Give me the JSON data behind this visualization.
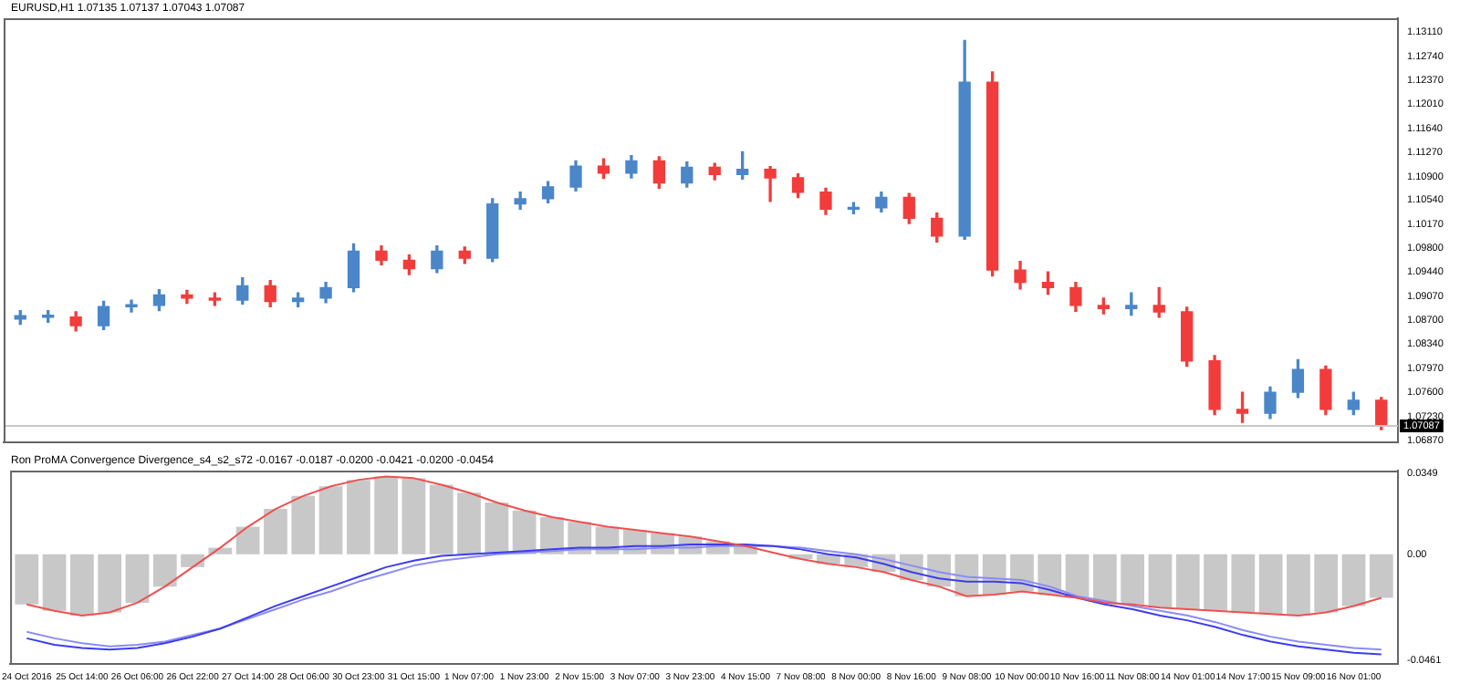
{
  "chart_data": [
    {
      "type": "candlestick",
      "title": "EURUSD,H1 1.07135 1.07137 1.07043 1.07087",
      "categories": [
        null,
        null,
        null,
        null,
        null,
        null,
        null,
        null,
        null,
        null,
        null,
        null,
        null,
        null,
        null,
        null,
        null,
        null,
        null,
        null,
        null,
        null,
        null,
        null,
        null,
        null,
        null,
        null,
        null,
        null,
        null,
        null,
        null,
        null,
        null,
        null,
        null,
        null,
        null,
        null,
        null,
        null,
        null,
        null,
        null,
        null,
        null,
        null,
        null,
        null
      ],
      "ohlc": [
        [
          1.0872,
          1.0885,
          1.0864,
          1.0877
        ],
        [
          1.0877,
          1.0885,
          1.0867,
          1.0875
        ],
        [
          1.0875,
          1.0883,
          1.0854,
          1.0862
        ],
        [
          1.0862,
          1.0899,
          1.0856,
          1.0891
        ],
        [
          1.0891,
          1.0901,
          1.0883,
          1.0893
        ],
        [
          1.0893,
          1.0917,
          1.0885,
          1.0909
        ],
        [
          1.0909,
          1.0916,
          1.0896,
          1.0904
        ],
        [
          1.0904,
          1.0912,
          1.0893,
          1.0901
        ],
        [
          1.0901,
          1.0935,
          1.0895,
          1.0923
        ],
        [
          1.0923,
          1.0931,
          1.0891,
          1.0899
        ],
        [
          1.0899,
          1.0912,
          1.0891,
          1.0904
        ],
        [
          1.0904,
          1.0928,
          1.0897,
          1.092
        ],
        [
          1.092,
          1.0987,
          1.0914,
          1.0976
        ],
        [
          1.0976,
          1.0984,
          1.0955,
          1.0962
        ],
        [
          1.0962,
          1.097,
          1.094,
          1.0949
        ],
        [
          1.0949,
          1.0984,
          1.0943,
          1.0976
        ],
        [
          1.0976,
          1.0982,
          1.0957,
          1.0965
        ],
        [
          1.0965,
          1.1056,
          1.096,
          1.1048
        ],
        [
          1.1048,
          1.1066,
          1.104,
          1.1056
        ],
        [
          1.1056,
          1.1082,
          1.105,
          1.1074
        ],
        [
          1.1074,
          1.1114,
          1.1068,
          1.1106
        ],
        [
          1.1106,
          1.1117,
          1.1087,
          1.1095
        ],
        [
          1.1095,
          1.1122,
          1.1088,
          1.1114
        ],
        [
          1.1114,
          1.112,
          1.1072,
          1.108
        ],
        [
          1.108,
          1.1112,
          1.1074,
          1.1104
        ],
        [
          1.1104,
          1.111,
          1.1085,
          1.1093
        ],
        [
          1.1093,
          1.1128,
          1.1086,
          1.1101
        ],
        [
          1.1101,
          1.1105,
          1.1052,
          1.1088
        ],
        [
          1.1088,
          1.1094,
          1.1058,
          1.1066
        ],
        [
          1.1066,
          1.1072,
          1.1032,
          1.104
        ],
        [
          1.104,
          1.105,
          1.1033,
          1.1042
        ],
        [
          1.1042,
          1.1066,
          1.1036,
          1.1058
        ],
        [
          1.1058,
          1.1064,
          1.1018,
          1.1026
        ],
        [
          1.1026,
          1.1034,
          1.099,
          1.0999
        ],
        [
          1.0999,
          1.1298,
          1.0994,
          1.1234
        ],
        [
          1.1234,
          1.125,
          1.0938,
          1.0947
        ],
        [
          1.0947,
          1.096,
          1.0918,
          1.0928
        ],
        [
          1.0928,
          1.0944,
          1.091,
          1.092
        ],
        [
          1.092,
          1.0928,
          1.0884,
          1.0893
        ],
        [
          1.0893,
          1.0904,
          1.088,
          1.0888
        ],
        [
          1.0888,
          1.0912,
          1.0878,
          1.0893
        ],
        [
          1.0893,
          1.092,
          1.0875,
          1.0883
        ],
        [
          1.0883,
          1.089,
          1.08,
          1.0808
        ],
        [
          1.0808,
          1.0816,
          1.0726,
          1.0734
        ],
        [
          1.0734,
          1.076,
          1.0714,
          1.0728
        ],
        [
          1.0728,
          1.0768,
          1.072,
          1.076
        ],
        [
          1.076,
          1.081,
          1.0752,
          1.0795
        ],
        [
          1.0795,
          1.08,
          1.0726,
          1.0734
        ],
        [
          1.0734,
          1.076,
          1.0726,
          1.0748
        ],
        [
          1.0748,
          1.0752,
          1.0703,
          1.0709
        ]
      ],
      "colors": [
        "#4a86c8",
        "#4a86c8",
        "#f23c3c",
        "#4a86c8",
        "#4a86c8",
        "#4a86c8",
        "#f23c3c",
        "#f23c3c",
        "#4a86c8",
        "#f23c3c",
        "#4a86c8",
        "#4a86c8",
        "#4a86c8",
        "#f23c3c",
        "#f23c3c",
        "#4a86c8",
        "#f23c3c",
        "#4a86c8",
        "#4a86c8",
        "#4a86c8",
        "#4a86c8",
        "#f23c3c",
        "#4a86c8",
        "#f23c3c",
        "#4a86c8",
        "#f23c3c",
        "#4a86c8",
        "#f23c3c",
        "#f23c3c",
        "#f23c3c",
        "#4a86c8",
        "#4a86c8",
        "#f23c3c",
        "#f23c3c",
        "#4a86c8",
        "#f23c3c",
        "#f23c3c",
        "#f23c3c",
        "#f23c3c",
        "#f23c3c",
        "#4a86c8",
        "#f23c3c",
        "#f23c3c",
        "#f23c3c",
        "#f23c3c",
        "#4a86c8",
        "#4a86c8",
        "#f23c3c",
        "#4a86c8",
        "#f23c3c"
      ],
      "ylim": [
        1.0683,
        1.1332
      ],
      "yticks": [
        {
          "value": 1.1311,
          "label": "1.13110"
        },
        {
          "value": 1.1274,
          "label": "1.12740"
        },
        {
          "value": 1.1237,
          "label": "1.12370"
        },
        {
          "value": 1.1201,
          "label": "1.12010"
        },
        {
          "value": 1.1164,
          "label": "1.11640"
        },
        {
          "value": 1.1127,
          "label": "1.11270"
        },
        {
          "value": 1.109,
          "label": "1.10900"
        },
        {
          "value": 1.1054,
          "label": "1.10540"
        },
        {
          "value": 1.1017,
          "label": "1.10170"
        },
        {
          "value": 1.098,
          "label": "1.09800"
        },
        {
          "value": 1.0944,
          "label": "1.09440"
        },
        {
          "value": 1.0907,
          "label": "1.09070"
        },
        {
          "value": 1.087,
          "label": "1.08700"
        },
        {
          "value": 1.0834,
          "label": "1.08340"
        },
        {
          "value": 1.0797,
          "label": "1.07970"
        },
        {
          "value": 1.076,
          "label": "1.07600"
        },
        {
          "value": 1.0723,
          "label": "1.07230"
        },
        {
          "value": 1.0687,
          "label": "1.06870"
        }
      ],
      "ref_lines": [
        {
          "axis": "y",
          "value": 1.07087,
          "label": "1.07087",
          "color": "#c8c8c8"
        }
      ],
      "tick_labels": "y",
      "legend": false,
      "grid": false
    },
    {
      "type": "bar",
      "title": "Ron ProMA Convergence Divergence_s4_s2_s72 -0.0167 -0.0187 -0.0200 -0.0421 -0.0200 -0.0454",
      "categories": [
        "24 Oct 2016",
        null,
        "25 Oct 14:00",
        null,
        "26 Oct 06:00",
        null,
        "26 Oct 22:00",
        null,
        "27 Oct 14:00",
        null,
        "28 Oct 06:00",
        null,
        "30 Oct 23:00",
        null,
        "31 Oct 15:00",
        null,
        "1 Nov 07:00",
        null,
        "1 Nov 23:00",
        null,
        "2 Nov 15:00",
        null,
        "3 Nov 07:00",
        null,
        "3 Nov 23:00",
        null,
        "4 Nov 15:00",
        null,
        "7 Nov 08:00",
        null,
        "8 Nov 00:00",
        null,
        "8 Nov 16:00",
        null,
        "9 Nov 08:00",
        null,
        "10 Nov 00:00",
        null,
        "10 Nov 16:00",
        null,
        "11 Nov 08:00",
        null,
        "14 Nov 01:00",
        null,
        "14 Nov 17:00",
        null,
        "15 Nov 09:00",
        null,
        "16 Nov 01:00",
        null
      ],
      "series": [
        {
          "type": "bar",
          "color": "#c8c8c8",
          "values": [
            -0.0217,
            -0.0245,
            -0.0266,
            -0.0252,
            -0.021,
            -0.014,
            -0.0056,
            0.0028,
            0.0119,
            0.0196,
            0.0252,
            0.0294,
            0.0322,
            0.0336,
            0.0329,
            0.0301,
            0.0266,
            0.0224,
            0.0189,
            0.0161,
            0.014,
            0.0119,
            0.0105,
            0.0091,
            0.0077,
            0.0056,
            0.0035,
            null,
            -0.0021,
            -0.0042,
            -0.0056,
            -0.0077,
            -0.0112,
            -0.014,
            -0.0182,
            -0.0175,
            -0.0161,
            -0.0175,
            -0.0189,
            -0.021,
            -0.0217,
            -0.0231,
            -0.0238,
            -0.0245,
            -0.0252,
            -0.0259,
            -0.0266,
            -0.0252,
            -0.0224,
            -0.0189
          ]
        },
        {
          "type": "line",
          "color": "#f05050",
          "values": [
            -0.0217,
            -0.0245,
            -0.0266,
            -0.0252,
            -0.021,
            -0.014,
            -0.0056,
            0.0028,
            0.0119,
            0.0196,
            0.0252,
            0.0294,
            0.0322,
            0.0336,
            0.0329,
            0.0301,
            0.0266,
            0.0224,
            0.0189,
            0.0161,
            0.014,
            0.0119,
            0.0105,
            0.0091,
            0.0077,
            0.0056,
            0.0035,
            0.0007,
            -0.0021,
            -0.0042,
            -0.0056,
            -0.0077,
            -0.0112,
            -0.014,
            -0.0182,
            -0.0175,
            -0.0161,
            -0.0175,
            -0.0189,
            -0.021,
            -0.0217,
            -0.0231,
            -0.0238,
            -0.0245,
            -0.0252,
            -0.0259,
            -0.0266,
            -0.0252,
            -0.0224,
            -0.0189
          ]
        },
        {
          "type": "line",
          "color": "#3c3cf0",
          "values": [
            -0.0364,
            -0.0392,
            -0.0406,
            -0.0413,
            -0.0406,
            -0.0385,
            -0.0357,
            -0.0322,
            -0.0273,
            -0.0224,
            -0.0182,
            -0.014,
            -0.0098,
            -0.0056,
            -0.0028,
            -0.0007,
            0,
            0.0007,
            0.0014,
            0.0021,
            0.0028,
            0.0028,
            0.0035,
            0.0035,
            0.0042,
            0.0042,
            0.0042,
            0.0035,
            0.0021,
            0,
            -0.0014,
            -0.0042,
            -0.0077,
            -0.0105,
            -0.0119,
            -0.0119,
            -0.0126,
            -0.0154,
            -0.0189,
            -0.0217,
            -0.0238,
            -0.0266,
            -0.0287,
            -0.0315,
            -0.035,
            -0.0378,
            -0.0399,
            -0.0413,
            -0.0427,
            -0.0434
          ]
        },
        {
          "type": "line",
          "color": "#8c8cf5",
          "values": [
            -0.0336,
            -0.0364,
            -0.0385,
            -0.0399,
            -0.0392,
            -0.0378,
            -0.035,
            -0.0322,
            -0.028,
            -0.0238,
            -0.0196,
            -0.0161,
            -0.0119,
            -0.0084,
            -0.0049,
            -0.0028,
            -0.0014,
            0,
            0.0007,
            0.0014,
            0.0021,
            0.0021,
            0.0021,
            0.0028,
            0.0028,
            0.0035,
            0.0035,
            0.0035,
            0.0028,
            0.0014,
            0,
            -0.0021,
            -0.0049,
            -0.0077,
            -0.0098,
            -0.0105,
            -0.0112,
            -0.014,
            -0.0182,
            -0.0203,
            -0.0224,
            -0.0245,
            -0.0266,
            -0.0294,
            -0.0329,
            -0.0357,
            -0.0378,
            -0.0392,
            -0.0406,
            -0.0413
          ]
        }
      ],
      "ylim": [
        -0.0475,
        0.0362
      ],
      "yticks": [
        0.0349,
        {
          "value": 0,
          "label": "0.00"
        },
        -0.0461
      ],
      "legend": false,
      "grid": false
    }
  ]
}
